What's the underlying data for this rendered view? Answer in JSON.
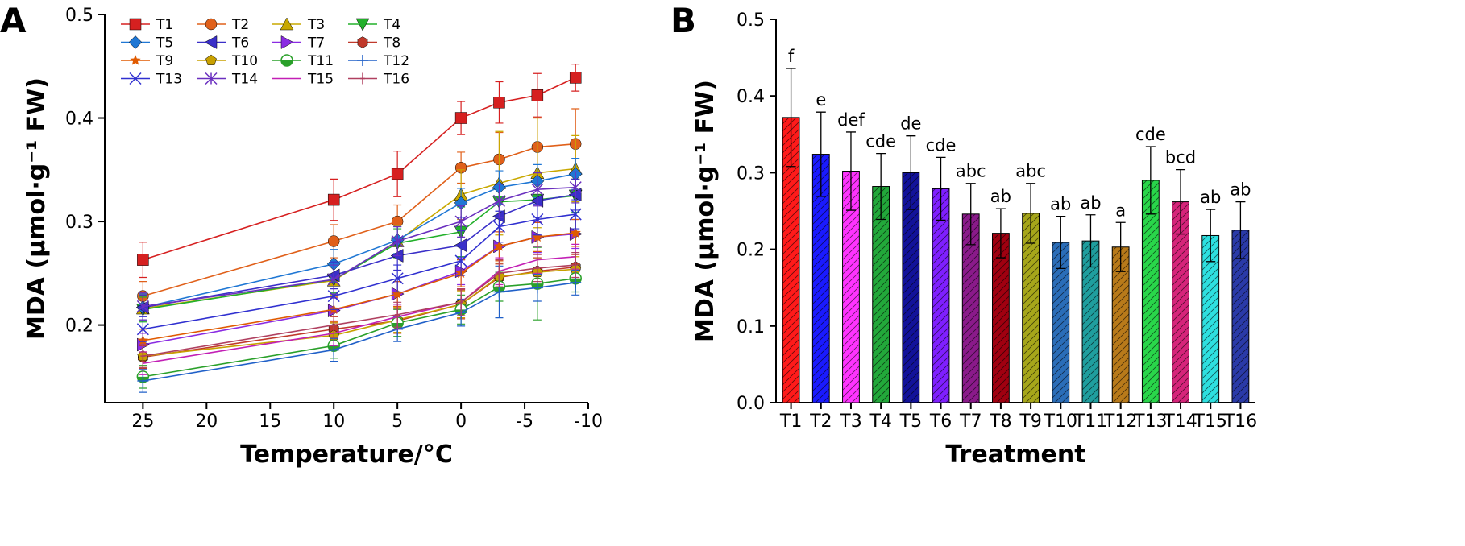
{
  "chart_data": [
    {
      "panel_label": "A",
      "type": "line",
      "xlabel": "Temperature/°C",
      "ylabel": "MDA (μmol·g⁻¹ FW)",
      "xlim": [
        28,
        -10
      ],
      "ylim": [
        0.125,
        0.5
      ],
      "x_ticks": [
        25,
        20,
        15,
        10,
        5,
        0,
        -5,
        -10
      ],
      "x_tick_labels": [
        "25",
        "20",
        "15",
        "10",
        "5",
        "0",
        "-5",
        "-10"
      ],
      "y_ticks": [
        0.2,
        0.3,
        0.4,
        0.5
      ],
      "y_tick_labels": [
        "0.2",
        "0.3",
        "0.4",
        "0.5"
      ],
      "x": [
        25,
        10,
        5,
        0,
        -3,
        -6,
        -9
      ],
      "legend_position": "top-left",
      "series": [
        {
          "name": "T1",
          "color": "#d62020",
          "marker": "square",
          "values": [
            0.263,
            0.321,
            0.346,
            0.4,
            0.415,
            0.422,
            0.439
          ],
          "errors": [
            0.017,
            0.02,
            0.022,
            0.016,
            0.02,
            0.021,
            0.013
          ]
        },
        {
          "name": "T2",
          "color": "#e0601a",
          "marker": "circle",
          "values": [
            0.228,
            0.281,
            0.3,
            0.352,
            0.36,
            0.372,
            0.375
          ],
          "errors": [
            0.014,
            0.016,
            0.016,
            0.015,
            0.026,
            0.028,
            0.034
          ]
        },
        {
          "name": "T3",
          "color": "#c8a800",
          "marker": "triangle-up",
          "values": [
            0.216,
            0.243,
            0.281,
            0.326,
            0.337,
            0.347,
            0.351
          ],
          "errors": [
            0.012,
            0.014,
            0.015,
            0.024,
            0.05,
            0.053,
            0.032
          ]
        },
        {
          "name": "T4",
          "color": "#22b02a",
          "marker": "triangle-down",
          "values": [
            0.215,
            0.244,
            0.279,
            0.29,
            0.319,
            0.321,
            0.325
          ],
          "errors": [
            0.012,
            0.013,
            0.014,
            0.024,
            0.016,
            0.017,
            0.016
          ]
        },
        {
          "name": "T5",
          "color": "#1f77d4",
          "marker": "diamond",
          "values": [
            0.217,
            0.259,
            0.282,
            0.318,
            0.333,
            0.339,
            0.346
          ],
          "errors": [
            0.013,
            0.014,
            0.013,
            0.014,
            0.016,
            0.016,
            0.015
          ]
        },
        {
          "name": "T6",
          "color": "#3a2fc8",
          "marker": "triangle-left",
          "values": [
            0.217,
            0.248,
            0.267,
            0.277,
            0.305,
            0.32,
            0.326
          ],
          "errors": [
            0.012,
            0.013,
            0.014,
            0.014,
            0.015,
            0.016,
            0.015
          ]
        },
        {
          "name": "T7",
          "color": "#8a2be2",
          "marker": "triangle-right",
          "values": [
            0.181,
            0.214,
            0.23,
            0.252,
            0.276,
            0.285,
            0.288
          ],
          "errors": [
            0.011,
            0.012,
            0.012,
            0.013,
            0.014,
            0.015,
            0.014
          ]
        },
        {
          "name": "T8",
          "color": "#c0392b",
          "marker": "hexagon",
          "values": [
            0.169,
            0.196,
            0.204,
            0.22,
            0.246,
            0.252,
            0.256
          ],
          "errors": [
            0.011,
            0.012,
            0.012,
            0.014,
            0.013,
            0.013,
            0.012
          ]
        },
        {
          "name": "T9",
          "color": "#e05a00",
          "marker": "star",
          "values": [
            0.185,
            0.215,
            0.23,
            0.25,
            0.276,
            0.285,
            0.289
          ],
          "errors": [
            0.011,
            0.012,
            0.012,
            0.013,
            0.014,
            0.014,
            0.013
          ]
        },
        {
          "name": "T10",
          "color": "#c8a000",
          "marker": "pentagon",
          "values": [
            0.17,
            0.19,
            0.205,
            0.22,
            0.247,
            0.251,
            0.254
          ],
          "errors": [
            0.011,
            0.012,
            0.012,
            0.013,
            0.013,
            0.013,
            0.012
          ]
        },
        {
          "name": "T11",
          "color": "#2aa02a",
          "marker": "half-circle",
          "values": [
            0.15,
            0.18,
            0.202,
            0.215,
            0.237,
            0.24,
            0.245
          ],
          "errors": [
            0.011,
            0.012,
            0.013,
            0.014,
            0.014,
            0.035,
            0.013
          ]
        },
        {
          "name": "T12",
          "color": "#2060c8",
          "marker": "plus",
          "values": [
            0.146,
            0.176,
            0.196,
            0.212,
            0.232,
            0.236,
            0.241
          ],
          "errors": [
            0.011,
            0.011,
            0.012,
            0.013,
            0.025,
            0.013,
            0.012
          ]
        },
        {
          "name": "T13",
          "color": "#3030d0",
          "marker": "x",
          "values": [
            0.196,
            0.228,
            0.245,
            0.262,
            0.295,
            0.302,
            0.307
          ],
          "errors": [
            0.012,
            0.013,
            0.013,
            0.014,
            0.015,
            0.015,
            0.014
          ]
        },
        {
          "name": "T14",
          "color": "#6a2fbf",
          "marker": "asterisk",
          "values": [
            0.218,
            0.244,
            0.281,
            0.3,
            0.32,
            0.331,
            0.333
          ],
          "errors": [
            0.013,
            0.014,
            0.014,
            0.015,
            0.016,
            0.016,
            0.015
          ]
        },
        {
          "name": "T15",
          "color": "#c21fb5",
          "marker": "none",
          "values": [
            0.163,
            0.192,
            0.208,
            0.222,
            0.252,
            0.263,
            0.266
          ],
          "errors": [
            0.011,
            0.012,
            0.012,
            0.013,
            0.013,
            0.013,
            0.012
          ]
        },
        {
          "name": "T16",
          "color": "#b04060",
          "marker": "vline",
          "values": [
            0.17,
            0.2,
            0.21,
            0.222,
            0.25,
            0.255,
            0.258
          ],
          "errors": [
            0.011,
            0.012,
            0.012,
            0.013,
            0.013,
            0.013,
            0.012
          ]
        }
      ]
    },
    {
      "panel_label": "B",
      "type": "bar",
      "xlabel": "Treatment",
      "ylabel": "MDA (μmol·g⁻¹ FW)",
      "ylim": [
        0,
        0.5
      ],
      "y_ticks": [
        0.0,
        0.1,
        0.2,
        0.3,
        0.4,
        0.5
      ],
      "y_tick_labels": [
        "0.0",
        "0.1",
        "0.2",
        "0.3",
        "0.4",
        "0.5"
      ],
      "categories": [
        "T1",
        "T2",
        "T3",
        "T4",
        "T5",
        "T6",
        "T7",
        "T8",
        "T9",
        "T10",
        "T11",
        "T12",
        "T13",
        "T14",
        "T15",
        "T16"
      ],
      "values": [
        0.372,
        0.324,
        0.302,
        0.282,
        0.3,
        0.279,
        0.246,
        0.221,
        0.247,
        0.209,
        0.211,
        0.203,
        0.29,
        0.262,
        0.218,
        0.225
      ],
      "errors": [
        0.064,
        0.055,
        0.051,
        0.043,
        0.048,
        0.041,
        0.04,
        0.032,
        0.039,
        0.034,
        0.034,
        0.032,
        0.044,
        0.042,
        0.034,
        0.037
      ],
      "significance_labels": [
        "f",
        "e",
        "def",
        "cde",
        "de",
        "cde",
        "abc",
        "ab",
        "abc",
        "ab",
        "ab",
        "a",
        "cde",
        "bcd",
        "ab",
        "ab"
      ],
      "colors": [
        "#ff1a1a",
        "#1a1aff",
        "#ff33ff",
        "#22a83a",
        "#12129a",
        "#7f1fff",
        "#8a1a8a",
        "#a00010",
        "#a6a61a",
        "#2a6db8",
        "#1f9e9e",
        "#b87a1a",
        "#29d64a",
        "#d6247a",
        "#2ee0e0",
        "#2a3aa8"
      ],
      "pattern": "diagonal-hatch"
    }
  ]
}
